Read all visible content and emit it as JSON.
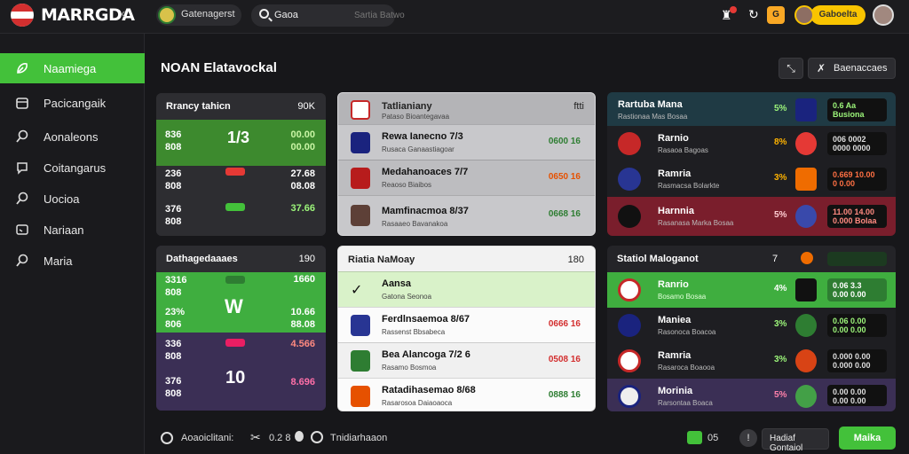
{
  "topbar": {
    "brand": "MARRGDA",
    "team_label": "Gatenagerst",
    "search_query": "Gaoa",
    "search_hint": "Sartia Batwo",
    "coins": "Gaboelta",
    "badge": "G"
  },
  "sidebar": {
    "items": [
      {
        "label": "Naamiega",
        "icon": "leaf-icon"
      },
      {
        "label": "Pacicangaik",
        "icon": "box-icon"
      },
      {
        "label": "Aonaleons",
        "icon": "search-icon"
      },
      {
        "label": "Coitangarus",
        "icon": "chat-icon"
      },
      {
        "label": "Uocioa",
        "icon": "search-icon"
      },
      {
        "label": "Nariaan",
        "icon": "screen-icon"
      },
      {
        "label": "Maria",
        "icon": "search-icon"
      }
    ]
  },
  "header": {
    "title": "NOAN Elatavockal",
    "action_label": "Baenaccaes"
  },
  "left_panels": [
    {
      "title": "Rrancy tahicn",
      "meta": "90K",
      "rows": [
        {
          "a": "836\n808",
          "center": "1/3",
          "b": "00.00\n00.00"
        },
        {
          "a": "236\n808",
          "b": "27.68\n08.08"
        },
        {
          "a": "376\n808",
          "b": "37.66"
        }
      ]
    },
    {
      "title": "Dathagedaaaes",
      "meta": "190",
      "rows": [
        {
          "a": "3316\n808",
          "b": "1660"
        },
        {
          "a": "23%\n806",
          "center": "W",
          "b": "10.66\n88.08"
        },
        {
          "a": "336\n808",
          "b": "4.566"
        },
        {
          "a": "376\n808",
          "center": "10",
          "b": "8.696"
        }
      ]
    }
  ],
  "middle_panels": [
    {
      "title": "Tatlianiany",
      "sub": "Pataso Bioantegavaa",
      "meta": "ftti",
      "rows": [
        {
          "name": "Rewa Ianecno 7/3",
          "sub": "Rusaca Ganaastiagoar",
          "odds": "0600 16"
        },
        {
          "name": "Medahanoaces 7/7",
          "sub": "Reaoso Biaibos",
          "odds": "0650 16"
        },
        {
          "name": "Mamfinacmoa 8/37",
          "sub": "Rasaaeo Bavanakoa",
          "odds": "0668 16"
        }
      ]
    },
    {
      "title": "Riatia NaMoay",
      "meta": "180",
      "rows": [
        {
          "name": "Aansa",
          "sub": "Gatona Seonoa",
          "odds": ""
        },
        {
          "name": "Ferdlnsaemoa 8/67",
          "sub": "Rassenst Bbsabeca",
          "odds": "0666 16"
        },
        {
          "name": "Bea Alancoga 7/2 6",
          "sub": "Rasamo Bosmoa",
          "odds": "0508 16"
        },
        {
          "name": "Ratadihasemao 8/68",
          "sub": "Rasarosoa Daiaoaoca",
          "odds": "0888 16"
        }
      ]
    }
  ],
  "right_panels": [
    {
      "title": "Rartuba Mana",
      "sub": "Rastionaa Mas Bosaa",
      "rows": [
        {
          "name": "",
          "sub": "",
          "pct": "5%",
          "box": "0.6 Aa\nBusiona"
        },
        {
          "name": "Rarnio",
          "sub": "Rasaoa Bagoas",
          "pct": "8%",
          "box": "006 0002\n0000 0000"
        },
        {
          "name": "Ramria",
          "sub": "Rasmacsa Bolarkte",
          "pct": "3%",
          "box": "0.669 10.00\n0 0.00"
        },
        {
          "name": "Harnnia",
          "sub": "Rasanasa Marka Bosaa",
          "pct": "5%",
          "box": "11.00 14.00\n0.000 Bolaa"
        }
      ]
    },
    {
      "title": "Statiol Maloganot",
      "meta": "7",
      "rows": [
        {
          "name": "Ranrio",
          "sub": "Bosamo Bosaa",
          "pct": "4%",
          "box": "0.06 3.3\n0.00 0.00"
        },
        {
          "name": "Maniea",
          "sub": "Rasonoca Boacoa",
          "pct": "3%",
          "box": "0.06 0.00\n0.00 0.00"
        },
        {
          "name": "Ramria",
          "sub": "Rasaroca Boaooa",
          "pct": "3%",
          "box": "0.000 0.00\n0.000 0.00"
        },
        {
          "name": "Morinia",
          "sub": "Rarsontaa Boaca",
          "pct": "5%",
          "box": "0.00 0.00\n0.00 0.00"
        }
      ]
    }
  ],
  "footer": {
    "left_label": "Aoaoiclitani:",
    "stats": "0.2 8",
    "mid_label": "Tnidiarhaaon",
    "counter": "05",
    "ask_label": "Hadiaf Gontaiol",
    "button_label": "Maika"
  }
}
